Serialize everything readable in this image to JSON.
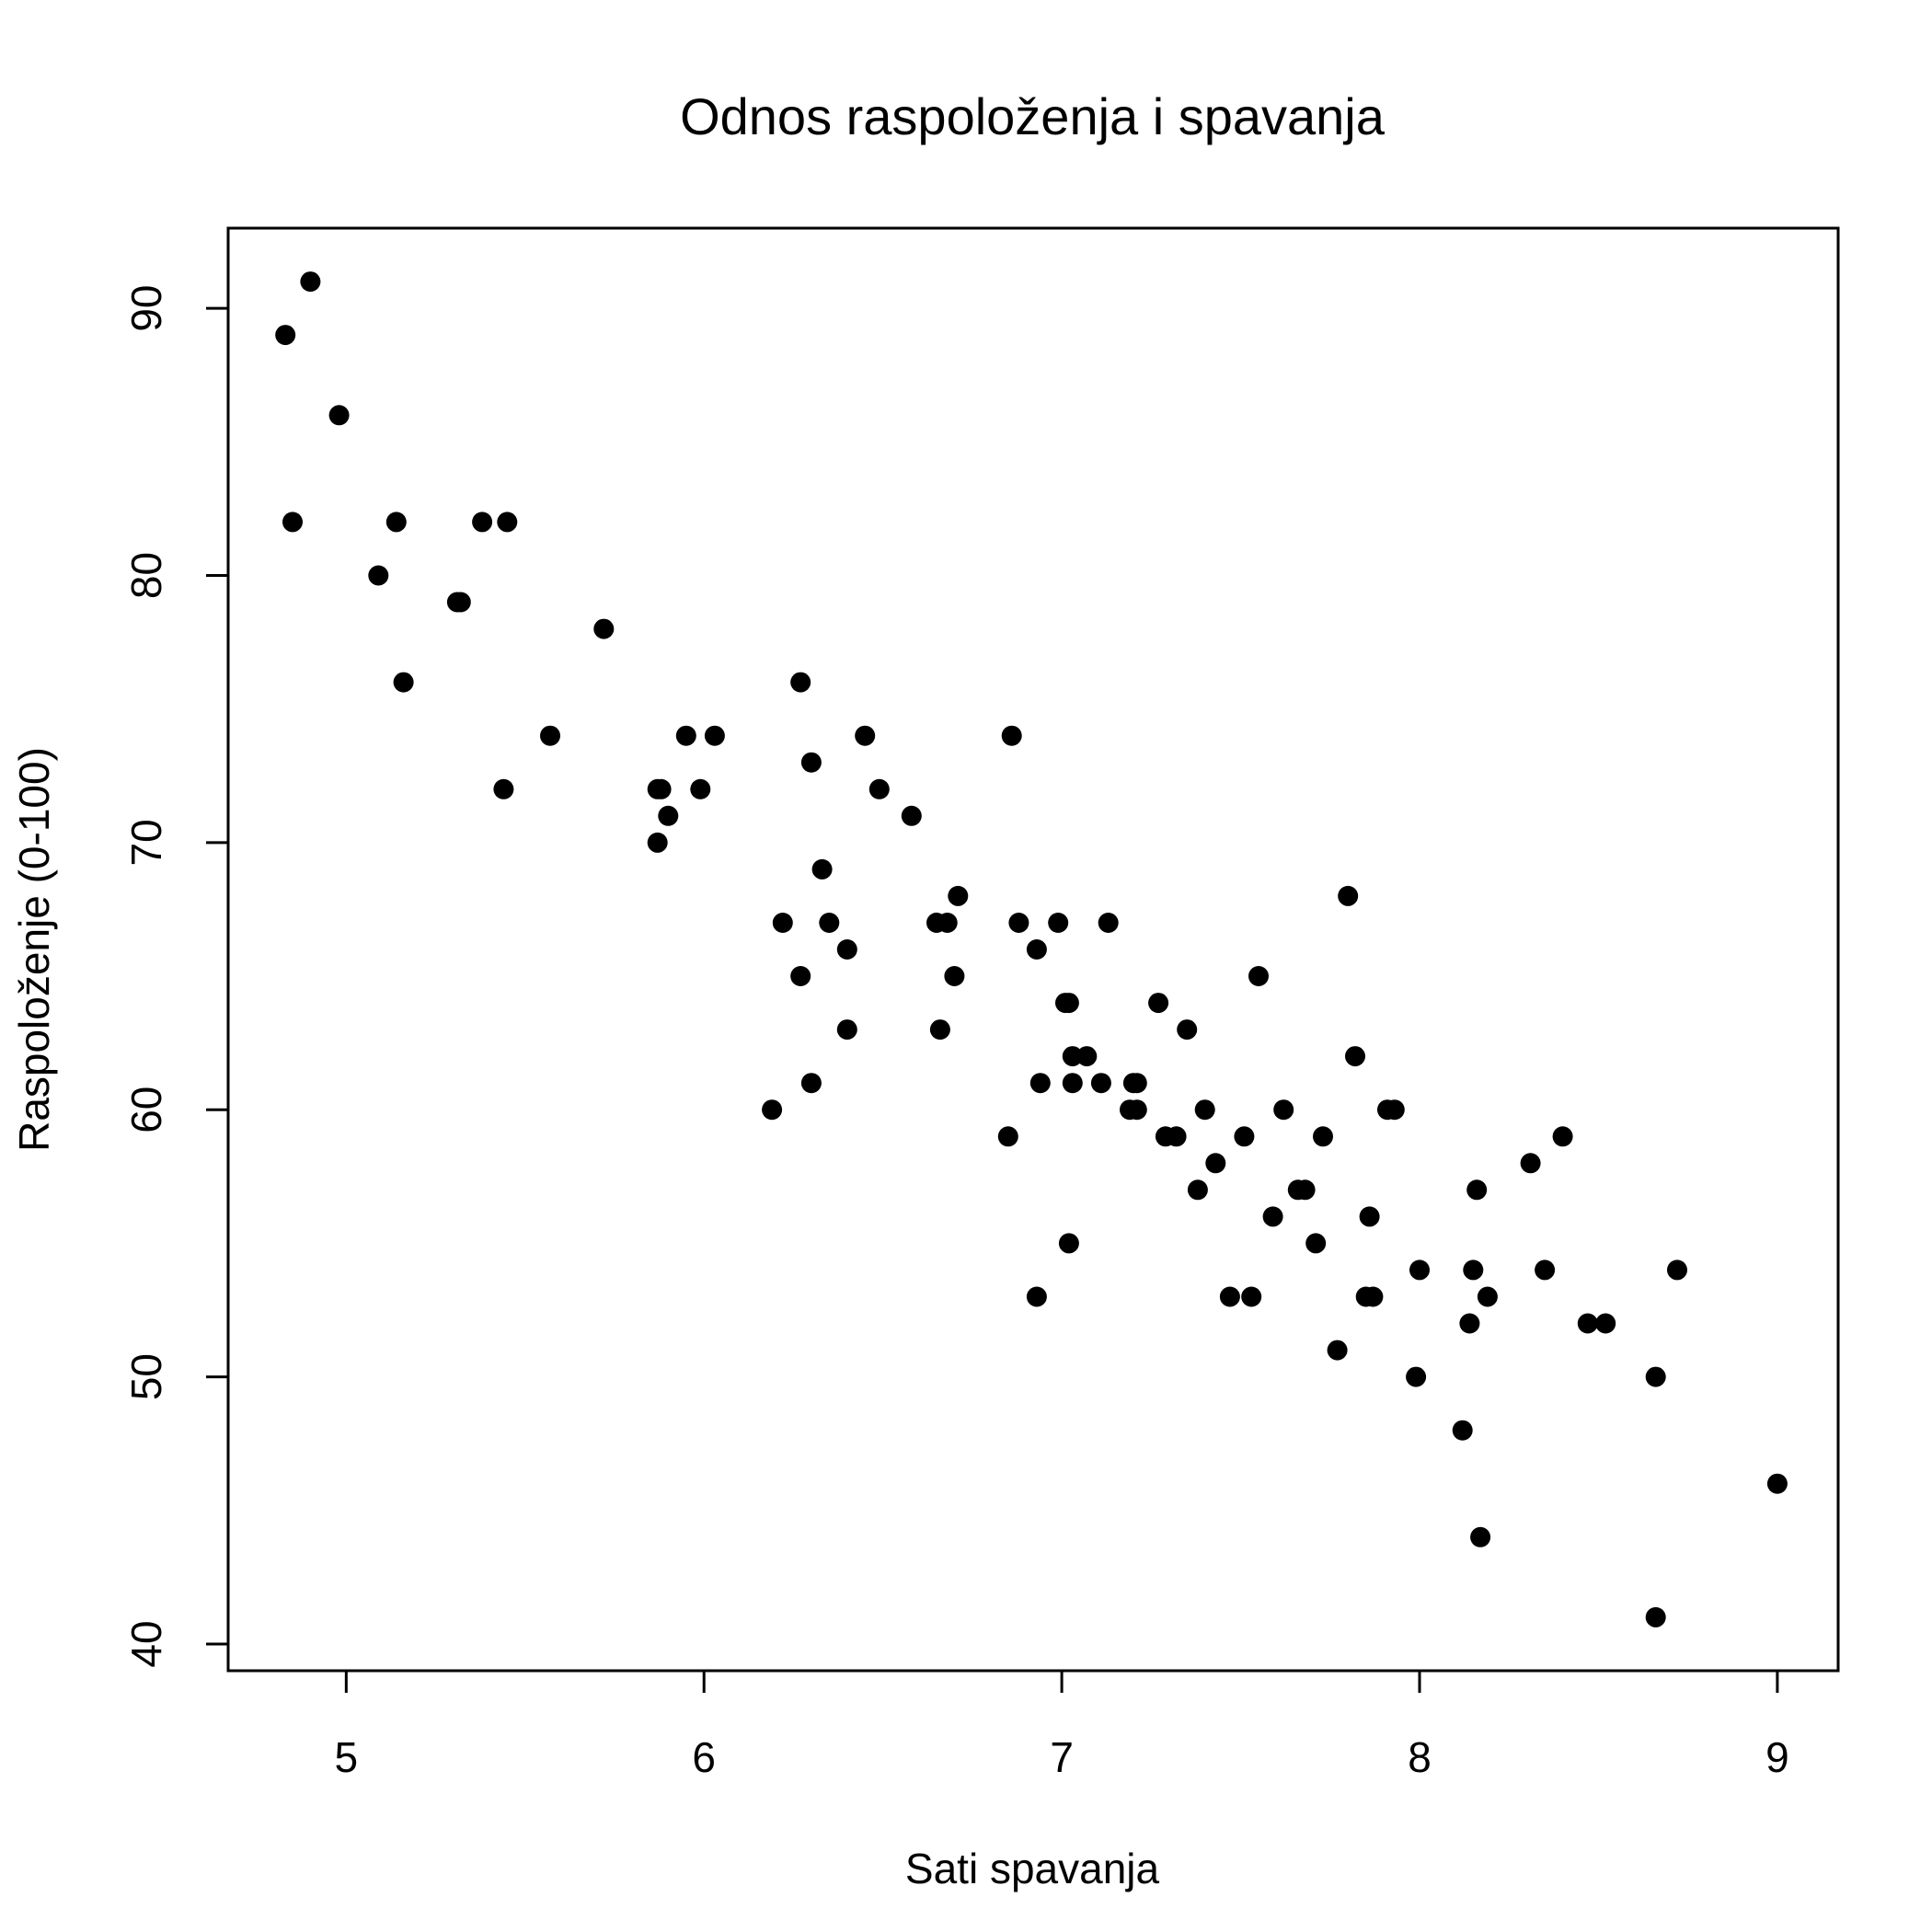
{
  "chart_data": {
    "type": "scatter",
    "title": "Odnos raspoloženja i spavanja",
    "xlabel": "Sati spavanja",
    "ylabel": "Raspoloženje (0-100)",
    "xlim": [
      4.67,
      9.17
    ],
    "ylim": [
      39.0,
      93.0
    ],
    "x_ticks": [
      5,
      6,
      7,
      8,
      9
    ],
    "y_ticks": [
      40,
      50,
      60,
      70,
      80,
      90
    ],
    "grid": false,
    "marker_color": "#000000",
    "points": [
      [
        4.83,
        89
      ],
      [
        4.85,
        82
      ],
      [
        4.9,
        91
      ],
      [
        4.98,
        86
      ],
      [
        5.09,
        80
      ],
      [
        5.14,
        82
      ],
      [
        5.16,
        76
      ],
      [
        5.31,
        79
      ],
      [
        5.32,
        79
      ],
      [
        5.38,
        82
      ],
      [
        5.44,
        72
      ],
      [
        5.45,
        82
      ],
      [
        5.57,
        74
      ],
      [
        5.72,
        78
      ],
      [
        5.87,
        70
      ],
      [
        5.87,
        72
      ],
      [
        5.88,
        72
      ],
      [
        5.9,
        71
      ],
      [
        5.95,
        74
      ],
      [
        5.99,
        72
      ],
      [
        6.03,
        74
      ],
      [
        6.19,
        60
      ],
      [
        6.22,
        67
      ],
      [
        6.27,
        76
      ],
      [
        6.27,
        65
      ],
      [
        6.3,
        73
      ],
      [
        6.3,
        61
      ],
      [
        6.33,
        69
      ],
      [
        6.35,
        67
      ],
      [
        6.4,
        66
      ],
      [
        6.4,
        63
      ],
      [
        6.45,
        74
      ],
      [
        6.49,
        72
      ],
      [
        6.58,
        71
      ],
      [
        6.65,
        67
      ],
      [
        6.66,
        63
      ],
      [
        6.68,
        67
      ],
      [
        6.7,
        65
      ],
      [
        6.71,
        68
      ],
      [
        6.85,
        59
      ],
      [
        6.86,
        74
      ],
      [
        6.88,
        67
      ],
      [
        6.93,
        53
      ],
      [
        6.93,
        66
      ],
      [
        6.94,
        61
      ],
      [
        6.99,
        67
      ],
      [
        7.01,
        64
      ],
      [
        7.02,
        64
      ],
      [
        7.02,
        55
      ],
      [
        7.03,
        61
      ],
      [
        7.03,
        62
      ],
      [
        7.07,
        62
      ],
      [
        7.11,
        61
      ],
      [
        7.13,
        67
      ],
      [
        7.19,
        60
      ],
      [
        7.2,
        61
      ],
      [
        7.21,
        60
      ],
      [
        7.21,
        61
      ],
      [
        7.27,
        64
      ],
      [
        7.29,
        59
      ],
      [
        7.32,
        59
      ],
      [
        7.35,
        63
      ],
      [
        7.38,
        57
      ],
      [
        7.4,
        60
      ],
      [
        7.43,
        58
      ],
      [
        7.47,
        53
      ],
      [
        7.51,
        59
      ],
      [
        7.53,
        53
      ],
      [
        7.55,
        65
      ],
      [
        7.59,
        56
      ],
      [
        7.62,
        60
      ],
      [
        7.66,
        57
      ],
      [
        7.68,
        57
      ],
      [
        7.71,
        55
      ],
      [
        7.73,
        59
      ],
      [
        7.77,
        51
      ],
      [
        7.8,
        68
      ],
      [
        7.82,
        62
      ],
      [
        7.85,
        53
      ],
      [
        7.86,
        56
      ],
      [
        7.87,
        53
      ],
      [
        7.91,
        60
      ],
      [
        7.93,
        60
      ],
      [
        7.99,
        50
      ],
      [
        8.0,
        54
      ],
      [
        8.12,
        48
      ],
      [
        8.14,
        52
      ],
      [
        8.15,
        54
      ],
      [
        8.16,
        57
      ],
      [
        8.17,
        44
      ],
      [
        8.19,
        53
      ],
      [
        8.31,
        58
      ],
      [
        8.35,
        54
      ],
      [
        8.4,
        59
      ],
      [
        8.47,
        52
      ],
      [
        8.52,
        52
      ],
      [
        8.66,
        41
      ],
      [
        8.66,
        50
      ],
      [
        8.72,
        54
      ],
      [
        9.0,
        46
      ]
    ]
  }
}
